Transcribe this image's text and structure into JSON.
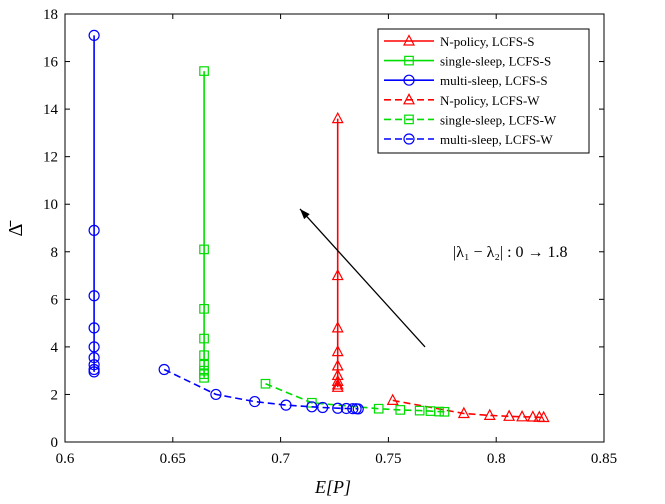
{
  "chart_data": {
    "type": "line",
    "xlabel": "E[P]",
    "ylabel": "Δ̄",
    "xlim": [
      0.6,
      0.85
    ],
    "ylim": [
      0,
      18
    ],
    "x_ticks": [
      "0.6",
      "0.65",
      "0.7",
      "0.75",
      "0.8",
      "0.85"
    ],
    "y_ticks": [
      "0",
      "2",
      "4",
      "6",
      "8",
      "10",
      "12",
      "14",
      "16",
      "18"
    ],
    "legend_position": "top-right",
    "annotation": "|λ₁ − λ₂| : 0 → 1.8",
    "annotation_arrow": {
      "from": [
        0.767,
        4.0
      ],
      "to": [
        0.709,
        9.8
      ]
    },
    "colors": {
      "red": "#ff0000",
      "green": "#00dd00",
      "blue": "#0000ff"
    },
    "series": [
      {
        "name": "N-policy, LCFS-S",
        "color": "red",
        "linestyle": "solid",
        "marker": "triangle",
        "x": [
          0.7265,
          0.7265,
          0.7265,
          0.7265,
          0.7265,
          0.7265,
          0.7265,
          0.7265,
          0.7265
        ],
        "y": [
          13.6,
          7.0,
          4.8,
          3.8,
          3.2,
          2.8,
          2.55,
          2.4,
          2.3
        ]
      },
      {
        "name": "single-sleep, LCFS-S",
        "color": "green",
        "linestyle": "solid",
        "marker": "square",
        "x": [
          0.6645,
          0.6645,
          0.6645,
          0.6645,
          0.6645,
          0.6645,
          0.6645,
          0.6645,
          0.6645
        ],
        "y": [
          15.6,
          8.1,
          5.6,
          4.35,
          3.65,
          3.25,
          3.0,
          2.85,
          2.7
        ]
      },
      {
        "name": "multi-sleep, LCFS-S",
        "color": "blue",
        "linestyle": "solid",
        "marker": "circle",
        "x": [
          0.6135,
          0.6135,
          0.6135,
          0.6135,
          0.6135,
          0.6135,
          0.6135,
          0.6135,
          0.6135
        ],
        "y": [
          17.1,
          8.9,
          6.15,
          4.8,
          4.0,
          3.55,
          3.25,
          3.05,
          2.95
        ]
      },
      {
        "name": "N-policy, LCFS-W",
        "color": "red",
        "linestyle": "dashed",
        "marker": "triangle",
        "x": [
          0.752,
          0.785,
          0.797,
          0.806,
          0.812,
          0.817,
          0.82,
          0.822
        ],
        "y": [
          1.75,
          1.2,
          1.12,
          1.08,
          1.06,
          1.05,
          1.04,
          1.03
        ]
      },
      {
        "name": "single-sleep, LCFS-W",
        "color": "green",
        "linestyle": "dashed",
        "marker": "square",
        "x": [
          0.693,
          0.7145,
          0.7455,
          0.7555,
          0.7645,
          0.7695,
          0.7735,
          0.776
        ],
        "y": [
          2.45,
          1.65,
          1.4,
          1.35,
          1.32,
          1.3,
          1.28,
          1.27
        ]
      },
      {
        "name": "multi-sleep, LCFS-W",
        "color": "blue",
        "linestyle": "dashed",
        "marker": "circle",
        "x": [
          0.646,
          0.67,
          0.688,
          0.7025,
          0.7145,
          0.7195,
          0.7265,
          0.7305,
          0.7335,
          0.735,
          0.736
        ],
        "y": [
          3.05,
          2.0,
          1.7,
          1.55,
          1.48,
          1.45,
          1.42,
          1.41,
          1.4,
          1.4,
          1.39
        ]
      }
    ]
  }
}
